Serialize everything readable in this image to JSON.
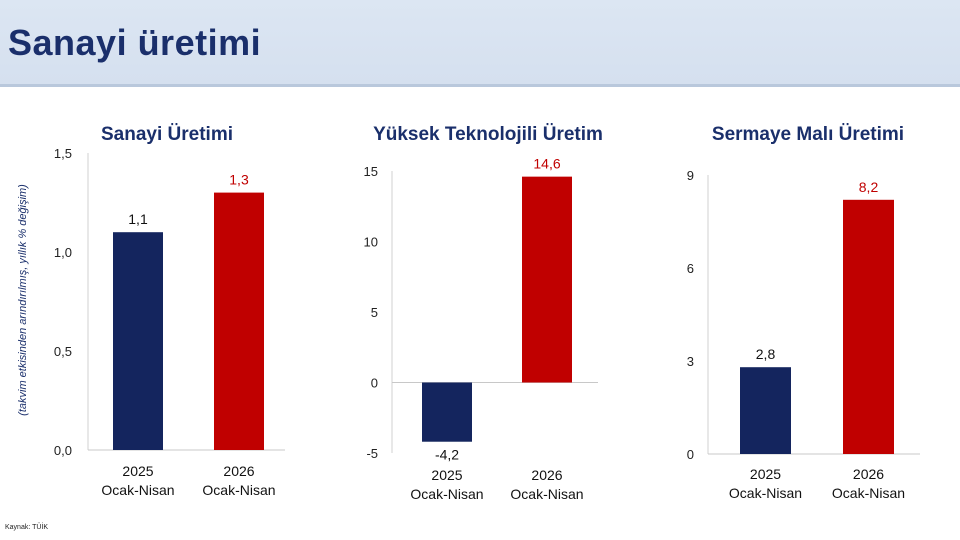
{
  "header": {
    "title": "Sanayi üretimi"
  },
  "source": "Kaynak: TÜİK",
  "colors": {
    "bar_2025": "#14255e",
    "bar_2026": "#c00000",
    "label_2026": "#c00000",
    "label_2025": "#111111"
  },
  "chart_data": [
    {
      "type": "bar",
      "title": "Sanayi Üretimi",
      "ylabel": "(takvim etkisinden arındırılmış, yıllık % değişim)",
      "ylim": [
        0,
        1.5
      ],
      "yticks": [
        "0,0",
        "0,5",
        "1,0",
        "1,5"
      ],
      "ytick_values": [
        0,
        0.5,
        1.0,
        1.5
      ],
      "categories": [
        [
          "2025",
          "Ocak-Nisan"
        ],
        [
          "2026",
          "Ocak-Nisan"
        ]
      ],
      "values": [
        1.1,
        1.3
      ],
      "value_labels": [
        "1,1",
        "1,3"
      ]
    },
    {
      "type": "bar",
      "title": "Yüksek Teknolojili Üretim",
      "ylabel": "",
      "ylim": [
        -5,
        15
      ],
      "yticks": [
        "-5",
        "0",
        "5",
        "10",
        "15"
      ],
      "ytick_values": [
        -5,
        0,
        5,
        10,
        15
      ],
      "categories": [
        [
          "2025",
          "Ocak-Nisan"
        ],
        [
          "2026",
          "Ocak-Nisan"
        ]
      ],
      "values": [
        -4.2,
        14.6
      ],
      "value_labels": [
        "-4,2",
        "14,6"
      ]
    },
    {
      "type": "bar",
      "title": "Sermaye Malı Üretimi",
      "ylabel": "",
      "ylim": [
        0,
        9
      ],
      "yticks": [
        "0",
        "3",
        "6",
        "9"
      ],
      "ytick_values": [
        0,
        3,
        6,
        9
      ],
      "categories": [
        [
          "2025",
          "Ocak-Nisan"
        ],
        [
          "2026",
          "Ocak-Nisan"
        ]
      ],
      "values": [
        2.8,
        8.2
      ],
      "value_labels": [
        "2,8",
        "8,2"
      ]
    }
  ]
}
